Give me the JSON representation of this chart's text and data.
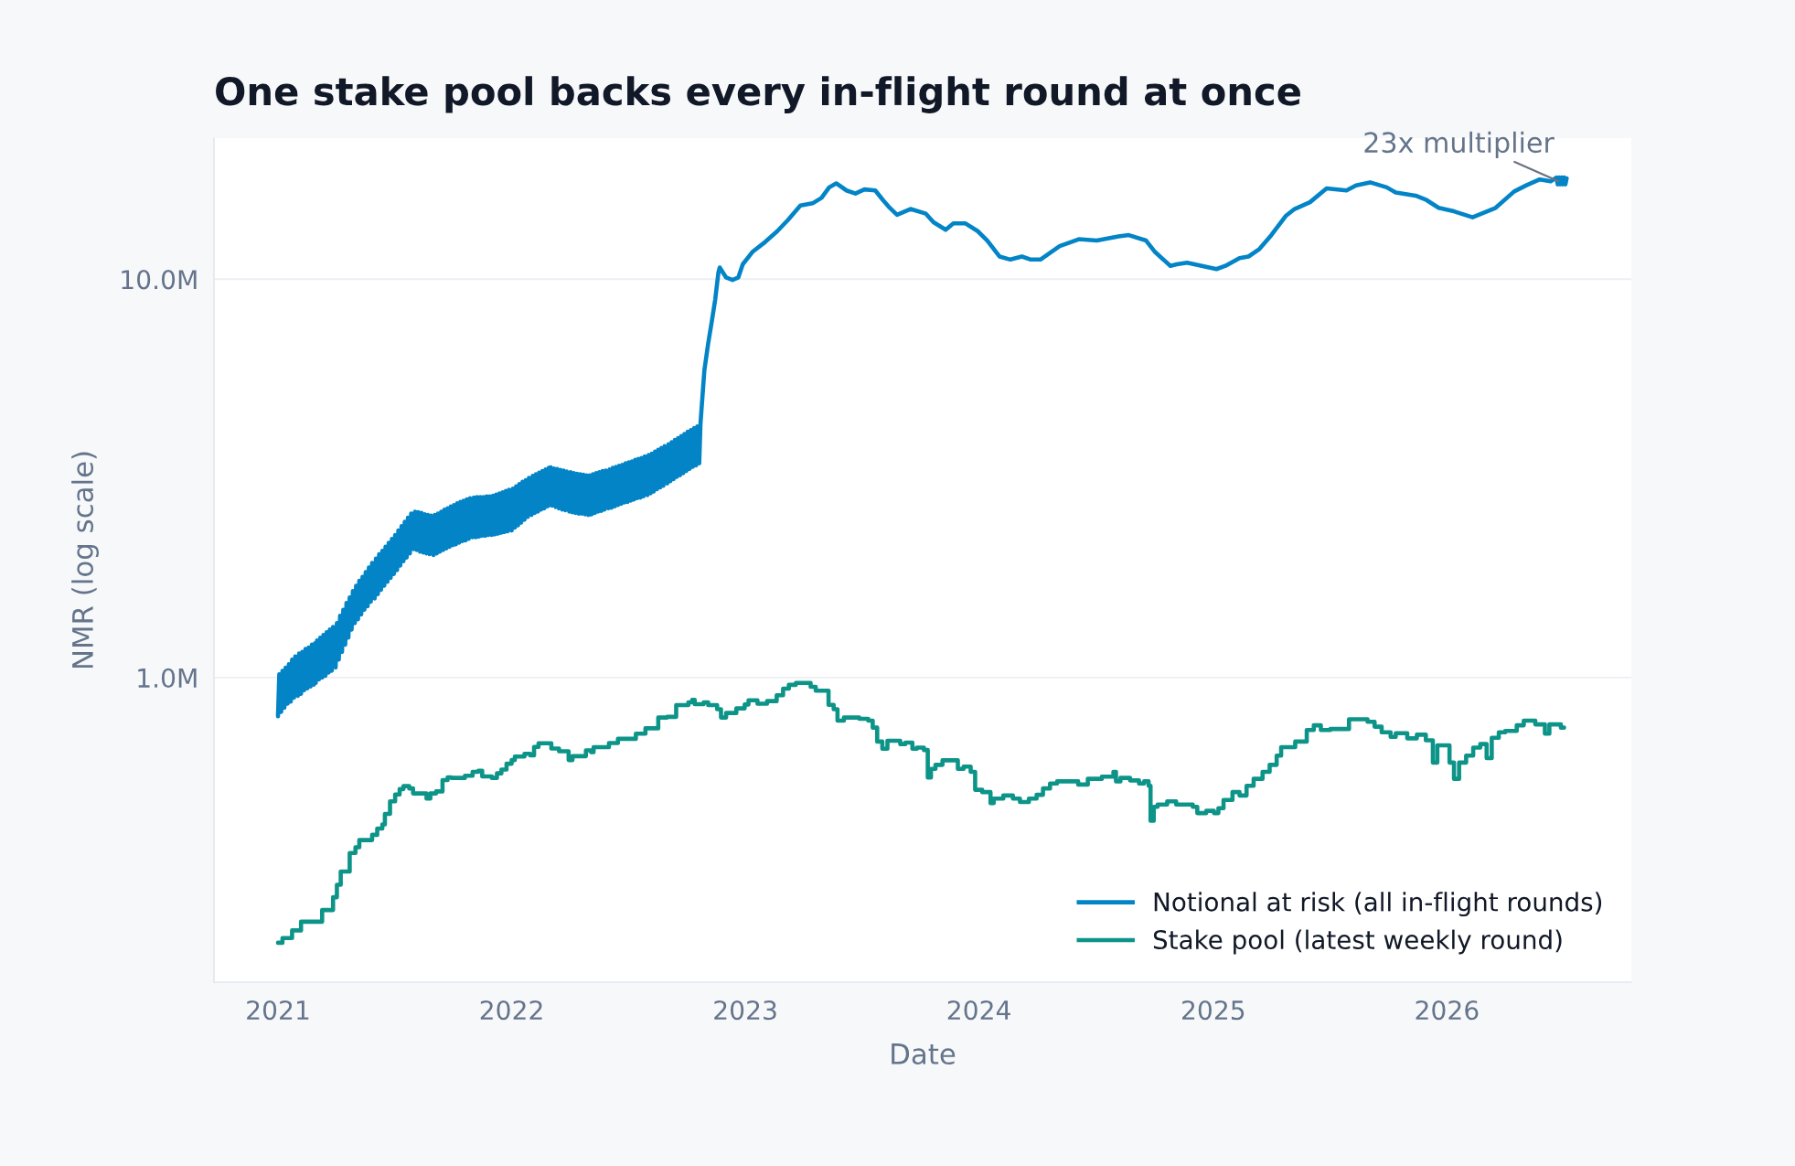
{
  "chart_data": {
    "type": "line",
    "title": "One stake pool backs every in-flight round at once",
    "xlabel": "Date",
    "ylabel": "NMR (log scale)",
    "log": "y",
    "grid": "y",
    "legend": "bottom right",
    "xlim": [
      "2020-09-23",
      "2026-10-16"
    ],
    "xticks": [
      {
        "value": "2021-01-01",
        "label": "2021"
      },
      {
        "value": "2022-01-01",
        "label": "2022"
      },
      {
        "value": "2023-01-01",
        "label": "2023"
      },
      {
        "value": "2024-01-01",
        "label": "2024"
      },
      {
        "value": "2025-01-01",
        "label": "2025"
      },
      {
        "value": "2026-01-01",
        "label": "2026"
      }
    ],
    "ylim": [
      0.172,
      22.6
    ],
    "yticks": [
      {
        "value": 1,
        "label": "1.0M"
      },
      {
        "value": 10,
        "label": "10.0M"
      }
    ],
    "annotations": [
      {
        "text": "23x multiplier",
        "x": "2026-06-28",
        "y": 17.5
      }
    ],
    "series": [
      {
        "name": "Notional at risk (all in-flight rounds)",
        "color": "#0284c7",
        "x": [
          "2021-01-01",
          "2021-01-03",
          "2021-01-06",
          "2021-01-08",
          "2021-01-11",
          "2021-01-13",
          "2021-01-16",
          "2021-01-18",
          "2021-01-21",
          "2021-01-23",
          "2021-01-26",
          "2021-01-28",
          "2021-02-01",
          "2021-02-03",
          "2021-02-06",
          "2021-02-08",
          "2021-02-11",
          "2021-02-13",
          "2021-02-16",
          "2021-02-18",
          "2021-02-21",
          "2021-02-23",
          "2021-02-26",
          "2021-02-28",
          "2021-03-01",
          "2021-03-03",
          "2021-03-06",
          "2021-03-08",
          "2021-03-11",
          "2021-03-13",
          "2021-03-16",
          "2021-03-18",
          "2021-03-21",
          "2021-03-23",
          "2021-03-26",
          "2021-03-28",
          "2021-04-01",
          "2021-04-03",
          "2021-04-06",
          "2021-04-08",
          "2021-04-11",
          "2021-04-13",
          "2021-04-16",
          "2021-04-18",
          "2021-04-21",
          "2021-04-23",
          "2021-04-26",
          "2021-04-28",
          "2021-05-01",
          "2021-05-03",
          "2021-05-06",
          "2021-05-08",
          "2021-05-11",
          "2021-05-13",
          "2021-05-16",
          "2021-05-18",
          "2021-05-21",
          "2021-05-23",
          "2021-05-26",
          "2021-05-28",
          "2021-06-01",
          "2021-06-03",
          "2021-06-06",
          "2021-06-08",
          "2021-06-11",
          "2021-06-13",
          "2021-06-16",
          "2021-06-18",
          "2021-06-21",
          "2021-06-23",
          "2021-06-26",
          "2021-06-28",
          "2021-07-01",
          "2021-07-03",
          "2021-07-06",
          "2021-07-08",
          "2021-07-11",
          "2021-07-13",
          "2021-07-16",
          "2021-07-18",
          "2021-07-21",
          "2021-07-23",
          "2021-07-26",
          "2021-07-28",
          "2021-08-01",
          "2021-08-03",
          "2021-08-06",
          "2021-08-08",
          "2021-08-11",
          "2021-08-13",
          "2021-08-16",
          "2021-08-18",
          "2021-08-21",
          "2021-08-23",
          "2021-08-26",
          "2021-08-28",
          "2021-09-01",
          "2021-09-03",
          "2021-09-06",
          "2021-09-08",
          "2021-09-11",
          "2021-09-13",
          "2021-09-16",
          "2021-09-18",
          "2021-09-21",
          "2021-09-23",
          "2021-09-26",
          "2021-09-28",
          "2021-10-01",
          "2021-10-03",
          "2021-10-06",
          "2021-10-08",
          "2021-10-11",
          "2021-10-13",
          "2021-10-16",
          "2021-10-18",
          "2021-10-21",
          "2021-10-23",
          "2021-10-26",
          "2021-10-28",
          "2021-11-01",
          "2021-11-03",
          "2021-11-06",
          "2021-11-08",
          "2021-11-11",
          "2021-11-13",
          "2021-11-16",
          "2021-11-18",
          "2021-11-21",
          "2021-11-23",
          "2021-11-26",
          "2021-11-28",
          "2021-12-01",
          "2021-12-03",
          "2021-12-06",
          "2021-12-08",
          "2021-12-11",
          "2021-12-13",
          "2021-12-16",
          "2021-12-18",
          "2021-12-21",
          "2021-12-23",
          "2021-12-26",
          "2021-12-28",
          "2022-01-01",
          "2022-01-03",
          "2022-01-06",
          "2022-01-08",
          "2022-01-11",
          "2022-01-13",
          "2022-01-16",
          "2022-01-18",
          "2022-01-21",
          "2022-01-23",
          "2022-01-26",
          "2022-01-28",
          "2022-02-01",
          "2022-02-03",
          "2022-02-06",
          "2022-02-08",
          "2022-02-11",
          "2022-02-13",
          "2022-02-16",
          "2022-02-18",
          "2022-02-21",
          "2022-02-23",
          "2022-02-26",
          "2022-02-28",
          "2022-03-01",
          "2022-03-03",
          "2022-03-06",
          "2022-03-08",
          "2022-03-11",
          "2022-03-13",
          "2022-03-16",
          "2022-03-18",
          "2022-03-21",
          "2022-03-23",
          "2022-03-26",
          "2022-03-28",
          "2022-04-01",
          "2022-04-03",
          "2022-04-06",
          "2022-04-08",
          "2022-04-11",
          "2022-04-13",
          "2022-04-16",
          "2022-04-18",
          "2022-04-21",
          "2022-04-23",
          "2022-04-26",
          "2022-04-28",
          "2022-05-01",
          "2022-05-03",
          "2022-05-06",
          "2022-05-08",
          "2022-05-11",
          "2022-05-13",
          "2022-05-16",
          "2022-05-18",
          "2022-05-21",
          "2022-05-23",
          "2022-05-26",
          "2022-05-28",
          "2022-06-01",
          "2022-06-03",
          "2022-06-06",
          "2022-06-08",
          "2022-06-11",
          "2022-06-13",
          "2022-06-16",
          "2022-06-18",
          "2022-06-21",
          "2022-06-23",
          "2022-06-26",
          "2022-06-28",
          "2022-07-01",
          "2022-07-03",
          "2022-07-06",
          "2022-07-08",
          "2022-07-11",
          "2022-07-13",
          "2022-07-16",
          "2022-07-18",
          "2022-07-21",
          "2022-07-23",
          "2022-07-26",
          "2022-07-28",
          "2022-08-01",
          "2022-08-03",
          "2022-08-06",
          "2022-08-08",
          "2022-08-11",
          "2022-08-13",
          "2022-08-16",
          "2022-08-18",
          "2022-08-21",
          "2022-08-23",
          "2022-08-26",
          "2022-08-28",
          "2022-09-01",
          "2022-09-03",
          "2022-09-06",
          "2022-09-08",
          "2022-09-11",
          "2022-09-13",
          "2022-09-16",
          "2022-09-18",
          "2022-09-21",
          "2022-09-23",
          "2022-09-26",
          "2022-09-28",
          "2022-10-01",
          "2022-10-03",
          "2022-10-06",
          "2022-10-08",
          "2022-10-11",
          "2022-10-13",
          "2022-10-16",
          "2022-10-18",
          "2022-10-21",
          "2022-10-23",
          "2022-10-29",
          "2022-11-04",
          "2022-11-10",
          "2022-11-15",
          "2022-11-20",
          "2022-11-22",
          "2022-12-02",
          "2022-12-12",
          "2022-12-21",
          "2022-12-28",
          "2023-01-12",
          "2023-02-01",
          "2023-02-20",
          "2023-03-09",
          "2023-03-28",
          "2023-04-16",
          "2023-04-30",
          "2023-05-12",
          "2023-05-23",
          "2023-06-08",
          "2023-06-22",
          "2023-07-06",
          "2023-07-23",
          "2023-08-04",
          "2023-08-13",
          "2023-08-26",
          "2023-09-16",
          "2023-10-10",
          "2023-10-22",
          "2023-11-10",
          "2023-11-22",
          "2023-12-11",
          "2023-12-30",
          "2024-01-14",
          "2024-02-02",
          "2024-02-19",
          "2024-03-08",
          "2024-03-22",
          "2024-04-06",
          "2024-05-06",
          "2024-06-05",
          "2024-07-03",
          "2024-08-06",
          "2024-08-22",
          "2024-09-18",
          "2024-10-02",
          "2024-10-26",
          "2024-11-05",
          "2024-11-21",
          "2025-01-06",
          "2025-01-20",
          "2025-02-11",
          "2025-02-25",
          "2025-03-14",
          "2025-03-31",
          "2025-04-24",
          "2025-05-08",
          "2025-06-01",
          "2025-06-27",
          "2025-07-28",
          "2025-08-12",
          "2025-09-03",
          "2025-09-29",
          "2025-10-13",
          "2025-11-13",
          "2025-11-30",
          "2025-12-19",
          "2026-01-12",
          "2026-02-10",
          "2026-02-24",
          "2026-03-18",
          "2026-04-16",
          "2026-05-05",
          "2026-05-26",
          "2026-06-12",
          "2026-06-21",
          "2026-06-23",
          "2026-06-25",
          "2026-06-27",
          "2026-06-29",
          "2026-07-01",
          "2026-07-03",
          "2026-07-05",
          "2026-07-07"
        ],
        "values": [
          0.8,
          1.02,
          0.82,
          1.04,
          0.84,
          1.06,
          0.86,
          1.08,
          0.87,
          1.11,
          0.89,
          1.13,
          0.9,
          1.15,
          0.91,
          1.16,
          0.93,
          1.18,
          0.94,
          1.19,
          0.95,
          1.21,
          0.96,
          1.22,
          0.97,
          1.24,
          0.99,
          1.26,
          1.0,
          1.28,
          1.01,
          1.3,
          1.03,
          1.32,
          1.04,
          1.34,
          1.06,
          1.37,
          1.11,
          1.43,
          1.16,
          1.48,
          1.21,
          1.54,
          1.26,
          1.59,
          1.32,
          1.65,
          1.37,
          1.7,
          1.4,
          1.75,
          1.44,
          1.79,
          1.48,
          1.84,
          1.51,
          1.89,
          1.55,
          1.94,
          1.58,
          1.99,
          1.62,
          2.04,
          1.66,
          2.08,
          1.7,
          2.13,
          1.74,
          2.18,
          1.78,
          2.23,
          1.82,
          2.28,
          1.86,
          2.34,
          1.91,
          2.4,
          1.96,
          2.46,
          2.0,
          2.52,
          2.05,
          2.58,
          2.1,
          2.61,
          2.09,
          2.6,
          2.07,
          2.59,
          2.06,
          2.57,
          2.05,
          2.56,
          2.04,
          2.55,
          2.03,
          2.56,
          2.05,
          2.58,
          2.07,
          2.61,
          2.09,
          2.64,
          2.11,
          2.66,
          2.13,
          2.69,
          2.15,
          2.71,
          2.16,
          2.74,
          2.18,
          2.76,
          2.2,
          2.78,
          2.21,
          2.8,
          2.23,
          2.82,
          2.25,
          2.83,
          2.25,
          2.84,
          2.26,
          2.84,
          2.27,
          2.84,
          2.27,
          2.85,
          2.28,
          2.85,
          2.28,
          2.86,
          2.29,
          2.88,
          2.3,
          2.9,
          2.31,
          2.92,
          2.32,
          2.94,
          2.33,
          2.96,
          2.34,
          2.98,
          2.38,
          3.02,
          2.41,
          3.06,
          2.45,
          3.1,
          2.49,
          3.13,
          2.53,
          3.17,
          2.56,
          3.21,
          2.59,
          3.24,
          2.61,
          3.27,
          2.64,
          3.3,
          2.66,
          3.33,
          2.69,
          3.36,
          2.71,
          3.37,
          2.7,
          3.35,
          2.68,
          3.34,
          2.66,
          3.32,
          2.64,
          3.31,
          2.63,
          3.29,
          2.61,
          3.28,
          2.6,
          3.26,
          2.59,
          3.25,
          2.58,
          3.24,
          2.58,
          3.23,
          2.57,
          3.22,
          2.56,
          3.22,
          2.57,
          3.24,
          2.59,
          3.26,
          2.61,
          3.28,
          2.62,
          3.3,
          2.64,
          3.31,
          2.66,
          3.33,
          2.67,
          3.36,
          2.69,
          3.38,
          2.71,
          3.4,
          2.73,
          3.42,
          2.75,
          3.45,
          2.76,
          3.47,
          2.78,
          3.49,
          2.8,
          3.52,
          2.82,
          3.54,
          2.83,
          3.56,
          2.85,
          3.59,
          2.87,
          3.62,
          2.9,
          3.65,
          2.93,
          3.69,
          2.97,
          3.73,
          3.0,
          3.77,
          3.03,
          3.81,
          3.07,
          3.85,
          3.11,
          3.9,
          3.15,
          3.95,
          3.19,
          3.99,
          3.22,
          4.04,
          3.26,
          4.09,
          3.3,
          4.14,
          3.34,
          4.18,
          3.38,
          4.23,
          3.41,
          4.27,
          3.45,
          4.35,
          5.9,
          6.9,
          7.9,
          8.9,
          10.4,
          10.7,
          10.1,
          9.95,
          10.1,
          10.9,
          11.7,
          12.4,
          13.2,
          14.1,
          15.3,
          15.5,
          16.0,
          17.0,
          17.4,
          16.7,
          16.4,
          16.8,
          16.7,
          15.8,
          15.2,
          14.5,
          15.0,
          14.6,
          13.9,
          13.3,
          13.8,
          13.8,
          13.2,
          12.5,
          11.4,
          11.2,
          11.4,
          11.2,
          11.2,
          12.1,
          12.6,
          12.5,
          12.8,
          12.9,
          12.5,
          11.7,
          10.8,
          10.9,
          11.0,
          10.6,
          10.8,
          11.3,
          11.4,
          11.9,
          12.8,
          14.4,
          15.0,
          15.6,
          16.9,
          16.7,
          17.2,
          17.5,
          17.0,
          16.5,
          16.2,
          15.8,
          15.1,
          14.8,
          14.3,
          14.6,
          15.1,
          16.6,
          17.2,
          17.8,
          17.6,
          18.0,
          17.3,
          18.0,
          17.3,
          18.0,
          17.3,
          18.0,
          17.3,
          17.9
        ]
      },
      {
        "name": "Stake pool (latest weekly round)",
        "color": "#0d9488",
        "type": "step",
        "x": [
          "2021-01-01",
          "2021-01-08",
          "2021-01-23",
          "2021-02-06",
          "2021-03-11",
          "2021-03-28",
          "2021-04-03",
          "2021-04-09",
          "2021-04-23",
          "2021-05-02",
          "2021-05-08",
          "2021-05-28",
          "2021-06-05",
          "2021-06-13",
          "2021-06-17",
          "2021-06-25",
          "2021-07-03",
          "2021-07-10",
          "2021-07-16",
          "2021-07-25",
          "2021-07-31",
          "2021-08-21",
          "2021-08-27",
          "2021-09-05",
          "2021-09-15",
          "2021-09-23",
          "2021-09-29",
          "2021-10-20",
          "2021-11-01",
          "2021-11-10",
          "2021-11-16",
          "2021-12-01",
          "2021-12-09",
          "2021-12-16",
          "2021-12-24",
          "2022-01-01",
          "2022-01-06",
          "2022-01-21",
          "2022-01-30",
          "2022-02-05",
          "2022-02-12",
          "2022-03-04",
          "2022-03-16",
          "2022-03-31",
          "2022-04-06",
          "2022-04-27",
          "2022-05-05",
          "2022-05-09",
          "2022-06-02",
          "2022-06-16",
          "2022-07-14",
          "2022-07-29",
          "2022-08-18",
          "2022-09-01",
          "2022-09-15",
          "2022-10-04",
          "2022-10-10",
          "2022-10-14",
          "2022-10-28",
          "2022-11-04",
          "2022-11-18",
          "2022-11-24",
          "2022-12-02",
          "2022-12-18",
          "2022-12-31",
          "2023-01-06",
          "2023-01-20",
          "2023-02-04",
          "2023-02-19",
          "2023-03-01",
          "2023-03-10",
          "2023-03-21",
          "2023-04-13",
          "2023-04-21",
          "2023-05-11",
          "2023-05-19",
          "2023-05-25",
          "2023-06-04",
          "2023-06-28",
          "2023-07-12",
          "2023-07-19",
          "2023-07-26",
          "2023-08-03",
          "2023-08-11",
          "2023-08-31",
          "2023-09-08",
          "2023-09-19",
          "2023-09-26",
          "2023-10-07",
          "2023-10-13",
          "2023-10-18",
          "2023-10-25",
          "2023-11-05",
          "2023-11-29",
          "2023-12-08",
          "2023-12-19",
          "2023-12-26",
          "2024-01-06",
          "2024-01-19",
          "2024-01-24",
          "2024-02-08",
          "2024-02-23",
          "2024-03-05",
          "2024-03-19",
          "2024-03-31",
          "2024-04-10",
          "2024-04-21",
          "2024-05-02",
          "2024-06-04",
          "2024-06-19",
          "2024-07-11",
          "2024-07-29",
          "2024-08-02",
          "2024-08-09",
          "2024-08-24",
          "2024-09-07",
          "2024-09-15",
          "2024-09-22",
          "2024-09-25",
          "2024-09-30",
          "2024-10-06",
          "2024-10-21",
          "2024-11-04",
          "2024-11-30",
          "2024-12-07",
          "2024-12-21",
          "2025-01-02",
          "2025-01-09",
          "2025-01-17",
          "2025-01-31",
          "2025-02-11",
          "2025-02-22",
          "2025-03-05",
          "2025-03-19",
          "2025-03-30",
          "2025-04-10",
          "2025-04-17",
          "2025-05-09",
          "2025-05-27",
          "2025-06-07",
          "2025-06-18",
          "2025-07-03",
          "2025-08-01",
          "2025-08-30",
          "2025-09-10",
          "2025-09-21",
          "2025-10-05",
          "2025-10-13",
          "2025-10-31",
          "2025-11-15",
          "2025-11-29",
          "2025-12-10",
          "2025-12-17",
          "2026-01-05",
          "2026-01-12",
          "2026-01-20",
          "2026-01-31",
          "2026-02-11",
          "2026-02-22",
          "2026-03-04",
          "2026-03-12",
          "2026-03-23",
          "2026-04-02",
          "2026-04-20",
          "2026-05-01",
          "2026-05-19",
          "2026-06-03",
          "2026-06-10",
          "2026-06-28",
          "2026-07-03"
        ],
        "values": [
          0.216,
          0.222,
          0.232,
          0.244,
          0.261,
          0.281,
          0.302,
          0.326,
          0.363,
          0.375,
          0.391,
          0.403,
          0.418,
          0.428,
          0.455,
          0.489,
          0.509,
          0.525,
          0.534,
          0.527,
          0.512,
          0.497,
          0.512,
          0.518,
          0.553,
          0.562,
          0.56,
          0.567,
          0.58,
          0.584,
          0.565,
          0.56,
          0.575,
          0.588,
          0.608,
          0.621,
          0.634,
          0.644,
          0.638,
          0.67,
          0.684,
          0.664,
          0.653,
          0.621,
          0.635,
          0.657,
          0.65,
          0.669,
          0.685,
          0.702,
          0.723,
          0.746,
          0.794,
          0.797,
          0.853,
          0.867,
          0.879,
          0.858,
          0.867,
          0.853,
          0.833,
          0.794,
          0.815,
          0.837,
          0.856,
          0.877,
          0.86,
          0.873,
          0.903,
          0.938,
          0.959,
          0.97,
          0.948,
          0.927,
          0.854,
          0.833,
          0.78,
          0.794,
          0.788,
          0.78,
          0.749,
          0.691,
          0.663,
          0.694,
          0.681,
          0.687,
          0.663,
          0.667,
          0.658,
          0.561,
          0.59,
          0.604,
          0.62,
          0.59,
          0.598,
          0.58,
          0.523,
          0.516,
          0.484,
          0.497,
          0.506,
          0.497,
          0.487,
          0.497,
          0.508,
          0.527,
          0.542,
          0.549,
          0.539,
          0.557,
          0.564,
          0.58,
          0.549,
          0.56,
          0.552,
          0.542,
          0.549,
          0.535,
          0.437,
          0.474,
          0.48,
          0.489,
          0.48,
          0.474,
          0.457,
          0.463,
          0.457,
          0.47,
          0.493,
          0.516,
          0.506,
          0.535,
          0.557,
          0.58,
          0.604,
          0.637,
          0.669,
          0.691,
          0.739,
          0.759,
          0.739,
          0.743,
          0.786,
          0.775,
          0.753,
          0.729,
          0.71,
          0.725,
          0.704,
          0.719,
          0.696,
          0.612,
          0.676,
          0.612,
          0.557,
          0.612,
          0.637,
          0.667,
          0.681,
          0.628,
          0.706,
          0.729,
          0.735,
          0.759,
          0.78,
          0.763,
          0.723,
          0.763,
          0.749,
          0.749
        ]
      }
    ]
  }
}
